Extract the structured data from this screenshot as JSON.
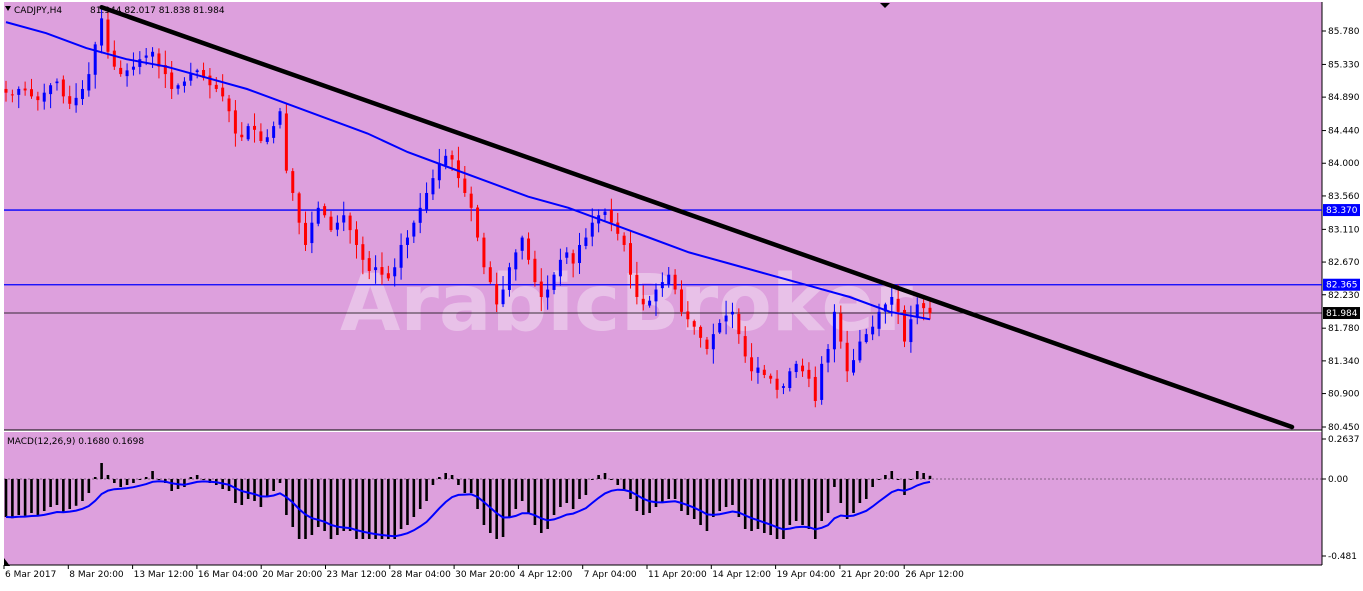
{
  "header": {
    "symbol": "CADJPY,H4",
    "ohlc": "81.944 82.017 81.838 81.984"
  },
  "watermark": "ArabicBroker",
  "macd": {
    "label": "MACD(12,26,9) 0.1680 0.1698",
    "yticks": [
      "0.2637",
      "0.00",
      "-0.481"
    ]
  },
  "price_axis": {
    "ticks": [
      "85.780",
      "85.330",
      "84.890",
      "84.440",
      "84.000",
      "83.560",
      "83.110",
      "82.670",
      "82.230",
      "81.780",
      "81.340",
      "80.900",
      "80.450"
    ],
    "hline_labels": [
      "83.370",
      "82.365"
    ],
    "current_label": "81.984"
  },
  "time_axis": {
    "labels": [
      "6 Mar 2017",
      "8 Mar 20:00",
      "13 Mar 12:00",
      "16 Mar 04:00",
      "20 Mar 20:00",
      "23 Mar 12:00",
      "28 Mar 04:00",
      "30 Mar 20:00",
      "4 Apr 12:00",
      "7 Apr 04:00",
      "11 Apr 20:00",
      "14 Apr 12:00",
      "19 Apr 04:00",
      "21 Apr 20:00",
      "26 Apr 12:00"
    ]
  },
  "colors": {
    "background": "#dda0dd",
    "bull": "#0000ff",
    "bear": "#ff0000",
    "moving_average": "#0000ff",
    "trendline": "#000000",
    "horizontal_lines": "#0000ff",
    "current_line": "#000000",
    "label_bg": "#0000ff",
    "label_text": "#ffffff"
  },
  "chart_data": {
    "type": "candlestick",
    "price_range": [
      80.45,
      86.0
    ],
    "horizontal_levels": [
      83.37,
      82.365
    ],
    "current_price": 81.984,
    "closes": [
      84.95,
      84.92,
      85.0,
      84.98,
      84.9,
      84.85,
      84.95,
      85.05,
      85.1,
      84.9,
      84.8,
      84.88,
      85.0,
      85.2,
      85.6,
      85.95,
      85.5,
      85.3,
      85.2,
      85.25,
      85.3,
      85.4,
      85.45,
      85.5,
      85.3,
      85.2,
      85.0,
      85.05,
      85.1,
      85.2,
      85.25,
      85.15,
      85.05,
      85.0,
      84.9,
      84.7,
      84.4,
      84.35,
      84.5,
      84.45,
      84.3,
      84.35,
      84.5,
      84.7,
      83.9,
      83.6,
      83.2,
      82.9,
      83.2,
      83.4,
      83.3,
      83.1,
      83.2,
      83.3,
      83.1,
      82.9,
      82.7,
      82.55,
      82.6,
      82.5,
      82.45,
      82.6,
      82.9,
      83.0,
      83.2,
      83.4,
      83.6,
      83.8,
      84.0,
      84.1,
      84.05,
      83.8,
      83.6,
      83.4,
      83.0,
      82.6,
      82.4,
      82.1,
      82.3,
      82.6,
      82.8,
      83.0,
      82.7,
      82.4,
      82.2,
      82.3,
      82.5,
      82.7,
      82.8,
      82.65,
      82.9,
      83.0,
      83.2,
      83.3,
      83.35,
      83.2,
      83.05,
      82.9,
      82.5,
      82.2,
      82.1,
      82.15,
      82.3,
      82.4,
      82.5,
      82.3,
      82.0,
      81.9,
      81.8,
      81.65,
      81.5,
      81.7,
      81.85,
      81.95,
      82.0,
      81.7,
      81.4,
      81.2,
      81.25,
      81.15,
      81.1,
      80.95,
      81.0,
      81.2,
      81.3,
      81.2,
      81.1,
      80.8,
      81.3,
      81.5,
      82.0,
      81.6,
      81.2,
      81.35,
      81.6,
      81.7,
      81.8,
      82.0,
      82.1,
      82.2,
      82.0,
      81.6,
      81.9,
      82.1,
      82.05,
      81.98
    ],
    "ma_series": [
      85.9,
      85.75,
      85.55,
      85.4,
      85.3,
      85.15,
      85.0,
      84.8,
      84.6,
      84.4,
      84.15,
      83.95,
      83.75,
      83.55,
      83.4,
      83.2,
      83.0,
      82.8,
      82.65,
      82.5,
      82.35,
      82.2,
      82.0,
      81.9
    ],
    "trendline": {
      "start_index": 15,
      "start_price": 86.1,
      "end_index": 195,
      "end_price": 80.45
    },
    "macd_histogram_range": [
      -0.481,
      0.2637
    ]
  }
}
